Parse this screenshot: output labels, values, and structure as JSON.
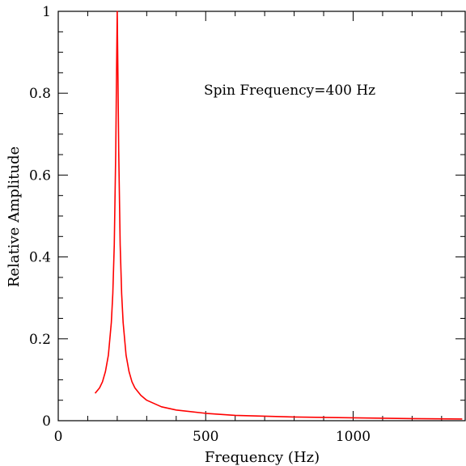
{
  "chart_data": {
    "type": "line",
    "title": "",
    "xlabel": "Frequency (Hz)",
    "ylabel": "Relative Amplitude",
    "xlim": [
      0,
      1380
    ],
    "ylim": [
      0,
      1
    ],
    "x_ticks": [
      0,
      500,
      1000
    ],
    "x_tick_labels": [
      "0",
      "500",
      "1000"
    ],
    "y_ticks": [
      0,
      0.2,
      0.4,
      0.6,
      0.8,
      1
    ],
    "y_tick_labels": [
      "0",
      "0.2",
      "0.4",
      "0.6",
      "0.8",
      "1"
    ],
    "grid": false,
    "annotation": "Spin Frequency=400 Hz",
    "series": [
      {
        "color": "#ff0000",
        "x": [
          125,
          140,
          150,
          160,
          170,
          180,
          185,
          190,
          195,
          198,
          200,
          202,
          205,
          210,
          215,
          220,
          230,
          240,
          250,
          260,
          280,
          300,
          350,
          400,
          500,
          600,
          700,
          800,
          1000,
          1200,
          1370
        ],
        "y": [
          0.067,
          0.08,
          0.095,
          0.12,
          0.16,
          0.24,
          0.31,
          0.43,
          0.66,
          0.87,
          1.0,
          0.87,
          0.66,
          0.43,
          0.31,
          0.24,
          0.16,
          0.12,
          0.095,
          0.08,
          0.062,
          0.05,
          0.034,
          0.026,
          0.018,
          0.013,
          0.011,
          0.009,
          0.007,
          0.005,
          0.004
        ]
      }
    ]
  }
}
